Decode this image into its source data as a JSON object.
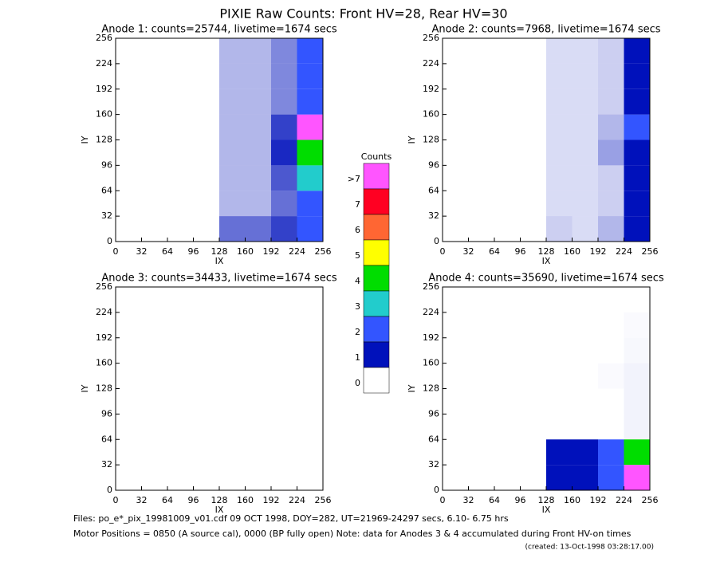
{
  "title": "PIXIE Raw Counts:  Front HV=28, Rear HV=30",
  "colorbar": {
    "title": "Counts",
    "levels": [
      0,
      1,
      2,
      3,
      4,
      5,
      6,
      7,
      {
        "value": 8,
        "label": ">7"
      }
    ],
    "colors": [
      "#ffffff",
      "#0011bb",
      "#3355ff",
      "#22cccc",
      "#00dd00",
      "#ffff00",
      "#ff6633",
      "#ff0022",
      "#ff55ff"
    ]
  },
  "footer": [
    "Files: po_e*_pix_19981009_v01.cdf    09 OCT 1998, DOY=282, UT=21969-24297 secs,  6.10- 6.75 hrs",
    "Motor Positions = 0850 (A source cal), 0000 (BP fully open)    Note: data for Anodes 3 & 4 accumulated during Front HV-on times",
    "(created: 13-Oct-1998 03:28:17.00)"
  ],
  "chart_data": [
    {
      "type": "heatmap",
      "title": "Anode 1: counts=25744, livetime=1674 secs",
      "xlabel": "IX",
      "ylabel": "IY",
      "xlim": [
        0,
        256
      ],
      "ylim": [
        0,
        256
      ],
      "xticks": [
        0,
        32,
        64,
        96,
        128,
        160,
        192,
        224,
        256
      ],
      "yticks": [
        0,
        32,
        64,
        96,
        128,
        160,
        192,
        224,
        256
      ],
      "z": [
        [
          0,
          0,
          0,
          0,
          0.6,
          0.6,
          0.8,
          2.5
        ],
        [
          0,
          0,
          0,
          0,
          0.3,
          0.3,
          0.6,
          2.5
        ],
        [
          0,
          0,
          0,
          0,
          0.3,
          0.3,
          0.7,
          3
        ],
        [
          0,
          0,
          0,
          0,
          0.3,
          0.3,
          0.9,
          4
        ],
        [
          0,
          0,
          0,
          0,
          0.3,
          0.3,
          0.8,
          8
        ],
        [
          0,
          0,
          0,
          0,
          0.3,
          0.3,
          0.5,
          2.5
        ],
        [
          0,
          0,
          0,
          0,
          0.3,
          0.3,
          0.5,
          2
        ],
        [
          0,
          0,
          0,
          0,
          0.3,
          0.3,
          0.5,
          2
        ]
      ]
    },
    {
      "type": "heatmap",
      "title": "Anode 2: counts=7968, livetime=1674 secs",
      "xlabel": "IX",
      "ylabel": "IY",
      "xlim": [
        0,
        256
      ],
      "ylim": [
        0,
        256
      ],
      "xticks": [
        0,
        32,
        64,
        96,
        128,
        160,
        192,
        224,
        256
      ],
      "yticks": [
        0,
        32,
        64,
        96,
        128,
        160,
        192,
        224,
        256
      ],
      "z": [
        [
          0,
          0,
          0,
          0,
          0.2,
          0.15,
          0.3,
          1.2
        ],
        [
          0,
          0,
          0,
          0,
          0.15,
          0.15,
          0.2,
          1.2
        ],
        [
          0,
          0,
          0,
          0,
          0.15,
          0.15,
          0.2,
          1.2
        ],
        [
          0,
          0,
          0,
          0,
          0.15,
          0.15,
          0.4,
          1.3
        ],
        [
          0,
          0,
          0,
          0,
          0.15,
          0.15,
          0.3,
          2
        ],
        [
          0,
          0,
          0,
          0,
          0.15,
          0.15,
          0.2,
          1.2
        ],
        [
          0,
          0,
          0,
          0,
          0.15,
          0.15,
          0.2,
          1.2
        ],
        [
          0,
          0,
          0,
          0,
          0.15,
          0.15,
          0.2,
          1.2
        ]
      ]
    },
    {
      "type": "heatmap",
      "title": "Anode 3: counts=34433, livetime=1674 secs",
      "xlabel": "IX",
      "ylabel": "IY",
      "xlim": [
        0,
        256
      ],
      "ylim": [
        0,
        256
      ],
      "xticks": [
        0,
        32,
        64,
        96,
        128,
        160,
        192,
        224,
        256
      ],
      "yticks": [
        0,
        32,
        64,
        96,
        128,
        160,
        192,
        224,
        256
      ],
      "z": [
        [
          0,
          0,
          0,
          0,
          0,
          0,
          0,
          0
        ],
        [
          0,
          0,
          0,
          0,
          0,
          0,
          0,
          0
        ],
        [
          0,
          0,
          0,
          0,
          0,
          0,
          0,
          0
        ],
        [
          0,
          0,
          0,
          0,
          0,
          0,
          0,
          0
        ],
        [
          0,
          0,
          0,
          0,
          0,
          0,
          0,
          0
        ],
        [
          0,
          0,
          0,
          0,
          0,
          0,
          0,
          0
        ],
        [
          0,
          0,
          0,
          0,
          0,
          0,
          0,
          0
        ],
        [
          0,
          0,
          0,
          0,
          0,
          0,
          0,
          0
        ]
      ]
    },
    {
      "type": "heatmap",
      "title": "Anode 4: counts=35690, livetime=1674 secs",
      "xlabel": "IX",
      "ylabel": "IY",
      "xlim": [
        0,
        256
      ],
      "ylim": [
        0,
        256
      ],
      "xticks": [
        0,
        32,
        64,
        96,
        128,
        160,
        192,
        224,
        256
      ],
      "yticks": [
        0,
        32,
        64,
        96,
        128,
        160,
        192,
        224,
        256
      ],
      "z": [
        [
          0,
          0,
          0,
          0,
          1.5,
          1.5,
          2.5,
          8
        ],
        [
          0,
          0,
          0,
          0,
          1.2,
          1.2,
          2,
          4
        ],
        [
          0,
          0,
          0,
          0,
          0,
          0,
          0,
          0.05
        ],
        [
          0,
          0,
          0,
          0,
          0,
          0,
          0,
          0.05
        ],
        [
          0,
          0,
          0,
          0,
          0,
          0,
          0.02,
          0.05
        ],
        [
          0,
          0,
          0,
          0,
          0,
          0,
          0,
          0.03
        ],
        [
          0,
          0,
          0,
          0,
          0,
          0,
          0,
          0.02
        ],
        [
          0,
          0,
          0,
          0,
          0,
          0,
          0,
          0
        ]
      ]
    }
  ]
}
